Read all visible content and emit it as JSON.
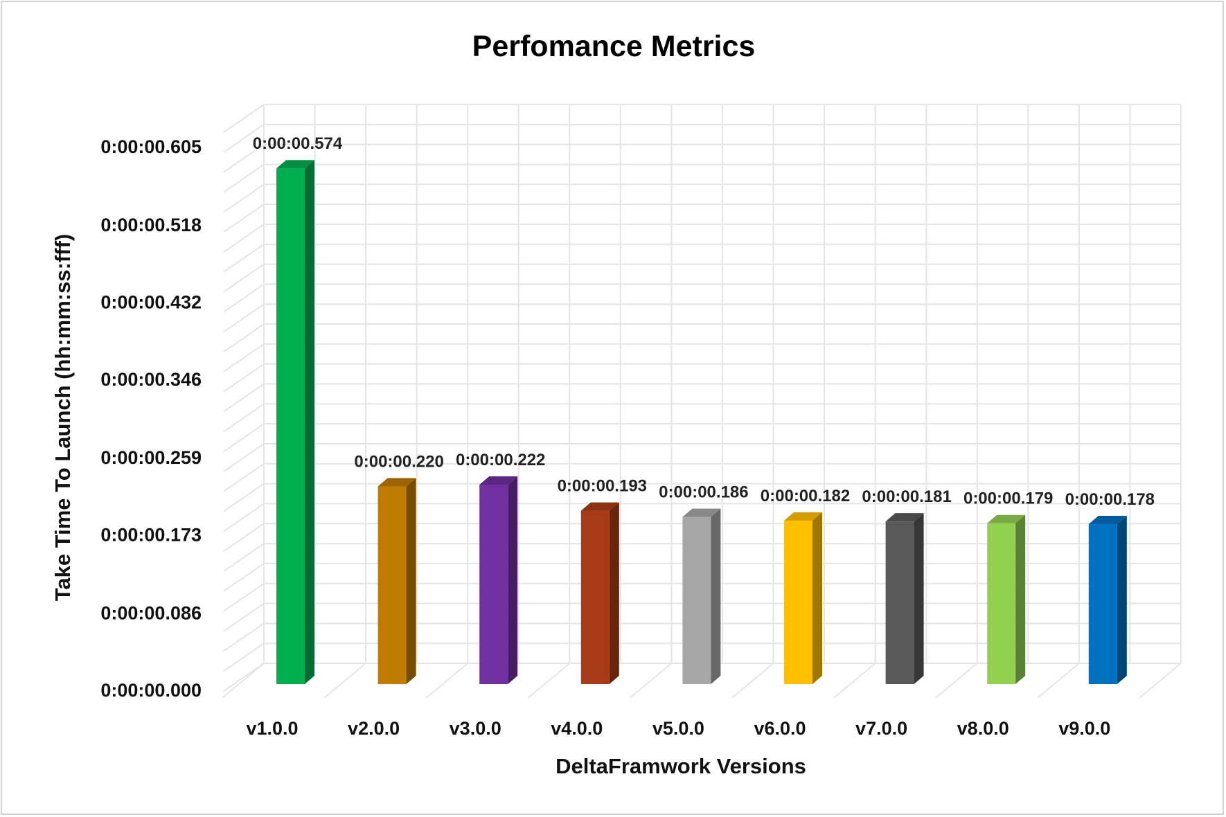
{
  "chart_data": {
    "type": "bar",
    "title": "Perfomance Metrics",
    "xlabel": "DeltaFramwork Versions",
    "ylabel": "Take Time To Launch (hh:mm:ss:fff)",
    "categories": [
      "v1.0.0",
      "v2.0.0",
      "v3.0.0",
      "v4.0.0",
      "v5.0.0",
      "v6.0.0",
      "v7.0.0",
      "v8.0.0",
      "v9.0.0"
    ],
    "values": [
      0.574,
      0.22,
      0.222,
      0.193,
      0.186,
      0.182,
      0.181,
      0.179,
      0.178
    ],
    "value_labels": [
      "0:00:00.574",
      "0:00:00.220",
      "0:00:00.222",
      "0:00:00.193",
      "0:00:00.186",
      "0:00:00.182",
      "0:00:00.181",
      "0:00:00.179",
      "0:00:00.178"
    ],
    "yticks": [
      0,
      0.086,
      0.173,
      0.259,
      0.346,
      0.432,
      0.518,
      0.605
    ],
    "ytick_labels": [
      "0:00:00.000",
      "0:00:00.086",
      "0:00:00.173",
      "0:00:00.259",
      "0:00:00.346",
      "0:00:00.432",
      "0:00:00.518",
      "0:00:00.605"
    ],
    "ylim": [
      0,
      0.605
    ],
    "grid": true,
    "style": "3d-column",
    "colors": [
      "#00b050",
      "#bf7a00",
      "#7030a0",
      "#a93a17",
      "#a6a6a6",
      "#ffc000",
      "#595959",
      "#92d050",
      "#0070c0"
    ]
  }
}
